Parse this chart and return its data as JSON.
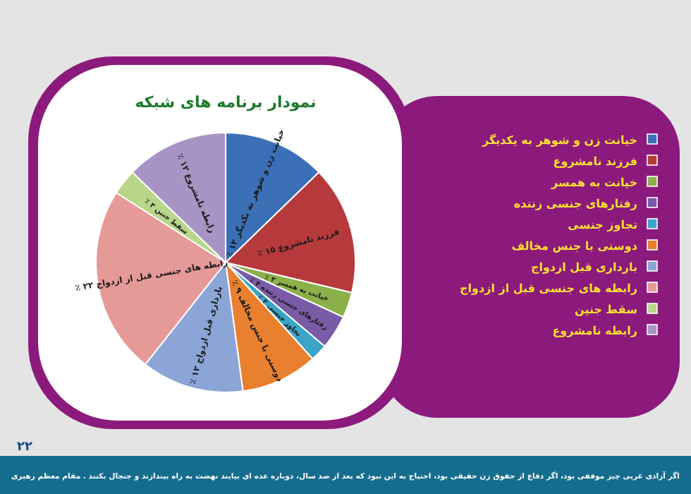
{
  "chart_data": {
    "type": "pie",
    "title": "نمودار برنامه های شبکه",
    "categories": [
      "خیانت زن و شوهر به یکدیگر",
      "فرزند نامشروع",
      "خیانت به همسر",
      "رفتارهای جنسی زننده",
      "تجاوز جنسی",
      "دوستی با جنس مخالف",
      "بارداری قبل ازدواج",
      "رابطه های جنسی قبل از ازدواج",
      "سقط جنین",
      "رابطه نامشروع"
    ],
    "values": [
      12,
      15,
      3,
      4,
      2,
      9,
      12,
      22,
      3,
      12
    ],
    "value_labels": [
      "۱۲ ٪",
      "۱۵ ٪",
      "۳ ٪",
      "۴ ٪",
      "۲ ٪",
      "۹ ٪",
      "۱۲ ٪",
      "۲۲ ٪",
      "۳ ٪",
      "۱۲ ٪"
    ],
    "colors": [
      "#3b6fb6",
      "#b63a3c",
      "#8cb04a",
      "#7a5ba6",
      "#3aa5c4",
      "#e8802f",
      "#8ba5d6",
      "#e69a98",
      "#b9d58a",
      "#a894c4"
    ],
    "legend": "right",
    "annotations": [
      "۲۲",
      "اگر آزادی غربی چیز موفقی بود، اگر دفاع از حقوق زن حقیقی بود، احتیاج به این نبود که بعد از صد سال، دوباره عده ای بیایند نهضت به راه بیندازند و جنجال بکنند . مقام معظم رهبری"
    ]
  }
}
